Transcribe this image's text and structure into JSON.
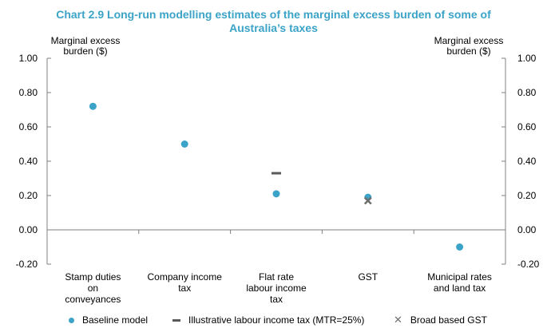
{
  "chart_data": {
    "type": "scatter",
    "title_line1": "Chart 2.9 Long-run modelling estimates of the marginal excess burden of some of",
    "title_line2": "Australia’s taxes",
    "ylabel_left": [
      "Marginal excess",
      "burden ($)"
    ],
    "ylabel_right": [
      "Marginal excess",
      "burden ($)"
    ],
    "ylim": [
      -0.2,
      1.0
    ],
    "yticks": [
      "1.00",
      "0.80",
      "0.60",
      "0.40",
      "0.20",
      "0.00",
      "-0.20"
    ],
    "ytick_values": [
      1.0,
      0.8,
      0.6,
      0.4,
      0.2,
      0.0,
      -0.2
    ],
    "categories": [
      [
        "Stamp duties",
        "on",
        "conveyances"
      ],
      [
        "Company income",
        "tax"
      ],
      [
        "Flat rate",
        "labour income",
        "tax"
      ],
      [
        "GST"
      ],
      [
        "Municipal rates",
        "and land tax"
      ]
    ],
    "series": [
      {
        "name": "Baseline model",
        "marker": "dot",
        "color": "#3ba3c7",
        "values": [
          0.72,
          0.5,
          0.21,
          0.19,
          -0.1
        ]
      },
      {
        "name": "Illustrative labour income tax (MTR=25%)",
        "marker": "dash",
        "color": "#595959",
        "values": [
          null,
          null,
          0.33,
          null,
          null
        ]
      },
      {
        "name": "Broad based GST",
        "marker": "x",
        "color": "#6e6e6e",
        "values": [
          null,
          null,
          null,
          0.17,
          null
        ]
      }
    ]
  }
}
